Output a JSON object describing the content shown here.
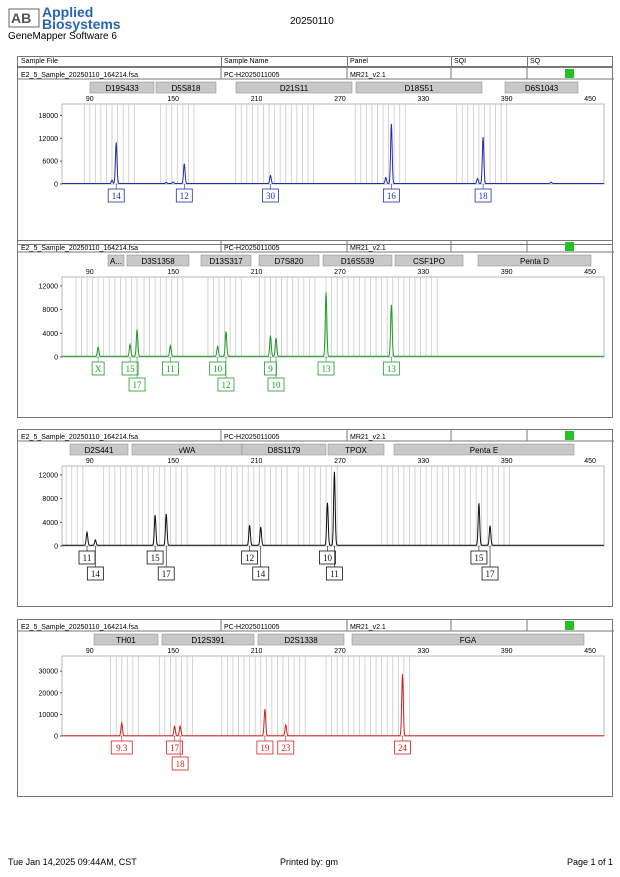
{
  "header": {
    "logo": "Applied Biosystems",
    "software": "GeneMapper Software 6",
    "run_date": "20250110"
  },
  "table_header": {
    "cols": [
      "Sample File",
      "Sample Name",
      "Panel",
      "SQI",
      "SQ"
    ]
  },
  "colors": {
    "blue": "#1f2fa8",
    "green": "#1f9a2a",
    "black": "#111111",
    "red": "#d42020",
    "qc": "#22c322"
  },
  "chart_data": [
    {
      "type": "line",
      "sample_file": "E2_5_Sample_20250110_164214.fsa",
      "sample_name": "PC-H2025011005",
      "panel": "MR21_v2.1",
      "color": "#1f2fa8",
      "x_ticks": [
        90,
        150,
        210,
        270,
        330,
        390,
        450
      ],
      "y_ticks": [
        0,
        6000,
        12000,
        18000
      ],
      "ylim": [
        0,
        21000
      ],
      "markers": [
        "D19S433",
        "D5S818",
        "D21S11",
        "D18S51",
        "D6S1043"
      ],
      "peaks": [
        {
          "x": 109,
          "h": 10800,
          "allele": "14"
        },
        {
          "x": 106,
          "h": 900
        },
        {
          "x": 158,
          "h": 5200,
          "allele": "12"
        },
        {
          "x": 150,
          "h": 400
        },
        {
          "x": 145,
          "h": 300
        },
        {
          "x": 220,
          "h": 2100,
          "allele": "30"
        },
        {
          "x": 307,
          "h": 15700,
          "allele": "16"
        },
        {
          "x": 303,
          "h": 1600
        },
        {
          "x": 373,
          "h": 12200,
          "allele": "18"
        },
        {
          "x": 369,
          "h": 1300
        },
        {
          "x": 422,
          "h": 400
        }
      ]
    },
    {
      "type": "line",
      "sample_file": "E2_5_Sample_20250110_164214.fsa",
      "sample_name": "PC-H2025011005",
      "panel": "MR21_v2.1",
      "color": "#1f9a2a",
      "x_ticks": [
        90,
        150,
        210,
        270,
        330,
        390,
        450
      ],
      "y_ticks": [
        0,
        4000,
        8000,
        12000
      ],
      "ylim": [
        0,
        13500
      ],
      "markers": [
        "A...",
        "D3S1358",
        "D13S317",
        "D7S820",
        "D16S539",
        "CSF1PO",
        "Penta D"
      ],
      "peaks": [
        {
          "x": 96,
          "h": 1500,
          "allele": "X"
        },
        {
          "x": 119,
          "h": 2000,
          "allele": "15"
        },
        {
          "x": 124,
          "h": 4500,
          "allele": "17"
        },
        {
          "x": 148,
          "h": 1800,
          "allele": "11"
        },
        {
          "x": 182,
          "h": 1700,
          "allele": "10"
        },
        {
          "x": 188,
          "h": 4200,
          "allele": "12"
        },
        {
          "x": 220,
          "h": 3500,
          "allele": "9"
        },
        {
          "x": 224,
          "h": 3100,
          "allele": "10"
        },
        {
          "x": 260,
          "h": 10800,
          "allele": "13"
        },
        {
          "x": 307,
          "h": 8700,
          "allele": "13"
        }
      ]
    },
    {
      "type": "line",
      "sample_file": "E2_5_Sample_20250110_164214.fsa",
      "sample_name": "PC-H2025011005",
      "panel": "MR21_v2.1",
      "color": "#111111",
      "x_ticks": [
        90,
        150,
        210,
        270,
        330,
        390,
        450
      ],
      "y_ticks": [
        0,
        4000,
        8000,
        12000
      ],
      "ylim": [
        0,
        13500
      ],
      "markers": [
        "D2S441",
        "vWA",
        "D8S1179",
        "TPOX",
        "Penta E"
      ],
      "peaks": [
        {
          "x": 88,
          "h": 2200,
          "allele": "11"
        },
        {
          "x": 94,
          "h": 900,
          "allele": "14"
        },
        {
          "x": 137,
          "h": 5100,
          "allele": "15"
        },
        {
          "x": 145,
          "h": 5300,
          "allele": "17"
        },
        {
          "x": 205,
          "h": 3400,
          "allele": "12"
        },
        {
          "x": 213,
          "h": 3100,
          "allele": "14"
        },
        {
          "x": 261,
          "h": 7200,
          "allele": "10"
        },
        {
          "x": 266,
          "h": 12400,
          "allele": "11"
        },
        {
          "x": 370,
          "h": 7100,
          "allele": "15"
        },
        {
          "x": 378,
          "h": 3300,
          "allele": "17"
        }
      ]
    },
    {
      "type": "line",
      "sample_file": "E2_5_Sample_20250110_164214.fsa",
      "sample_name": "PC-H2025011005",
      "panel": "MR21_v2.1",
      "color": "#d42020",
      "x_ticks": [
        90,
        150,
        210,
        270,
        330,
        390,
        450
      ],
      "y_ticks": [
        0,
        10000,
        20000,
        30000
      ],
      "ylim": [
        0,
        37000
      ],
      "markers": [
        "TH01",
        "D12S391",
        "D2S1338",
        "FGA"
      ],
      "peaks": [
        {
          "x": 113,
          "h": 5900,
          "allele": "9.3"
        },
        {
          "x": 151,
          "h": 4300,
          "allele": "17"
        },
        {
          "x": 155,
          "h": 4500,
          "allele": "18"
        },
        {
          "x": 216,
          "h": 12300,
          "allele": "19"
        },
        {
          "x": 231,
          "h": 5000,
          "allele": "23"
        },
        {
          "x": 315,
          "h": 28500,
          "allele": "24"
        }
      ]
    }
  ],
  "footer": {
    "date": "Tue Jan 14,2025 09:44AM, CST",
    "printed_by": "Printed by: gm",
    "page": "Page 1 of 1"
  }
}
